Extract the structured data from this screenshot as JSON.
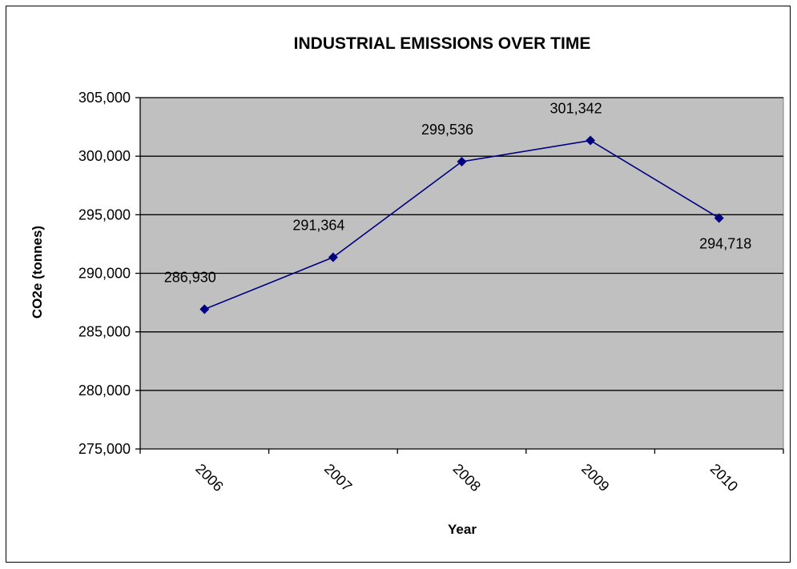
{
  "chart_data": {
    "type": "line",
    "title": "INDUSTRIAL EMISSIONS OVER TIME",
    "xlabel": "Year",
    "ylabel": "CO2e (tonnes)",
    "categories": [
      "2006",
      "2007",
      "2008",
      "2009",
      "2010"
    ],
    "series": [
      {
        "values": [
          286930,
          291364,
          299536,
          301342,
          294718
        ],
        "labels": [
          "286,930",
          "291,364",
          "299,536",
          "301,342",
          "294,718"
        ]
      }
    ],
    "ylim": [
      275000,
      305000
    ],
    "yticks": [
      275000,
      280000,
      285000,
      290000,
      295000,
      300000,
      305000
    ],
    "ytick_labels": [
      "275,000",
      "280,000",
      "285,000",
      "290,000",
      "295,000",
      "300,000",
      "305,000"
    ],
    "grid": true,
    "colors": {
      "plot_background": "#c0c0c0",
      "line": "#000080",
      "marker": "#000080",
      "gridline": "#000000"
    }
  }
}
